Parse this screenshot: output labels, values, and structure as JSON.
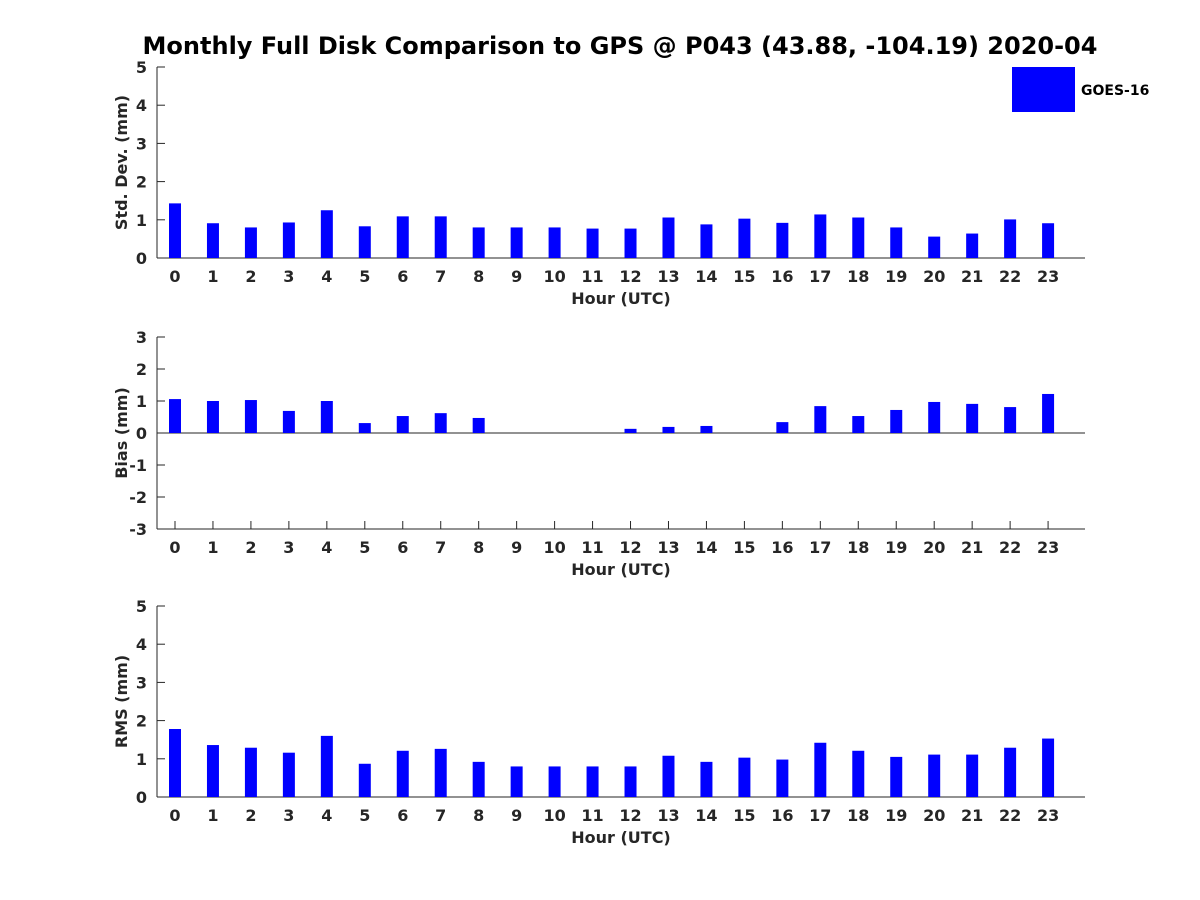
{
  "title": "Monthly Full Disk Comparison to GPS @ P043 (43.88, -104.19) 2020-04",
  "legend": {
    "label": "GOES-16",
    "placement": "top-right"
  },
  "colors": {
    "bar": "#0000ff",
    "axis": "#262626"
  },
  "chart_data": [
    {
      "type": "bar",
      "xlabel": "Hour (UTC)",
      "ylabel": "Std. Dev. (mm)",
      "ylim": [
        0,
        5
      ],
      "yticks": [
        0,
        1,
        2,
        3,
        4,
        5
      ],
      "categories": [
        "0",
        "1",
        "2",
        "3",
        "4",
        "5",
        "6",
        "7",
        "8",
        "9",
        "10",
        "11",
        "12",
        "13",
        "14",
        "15",
        "16",
        "17",
        "18",
        "19",
        "20",
        "21",
        "22",
        "23"
      ],
      "series": [
        {
          "name": "GOES-16",
          "values": [
            1.43,
            0.91,
            0.8,
            0.93,
            1.25,
            0.83,
            1.09,
            1.09,
            0.8,
            0.8,
            0.8,
            0.77,
            0.77,
            1.06,
            0.88,
            1.03,
            0.92,
            1.14,
            1.06,
            0.8,
            0.56,
            0.64,
            1.01,
            0.91
          ]
        }
      ]
    },
    {
      "type": "bar",
      "xlabel": "Hour (UTC)",
      "ylabel": "Bias (mm)",
      "ylim": [
        -3,
        3
      ],
      "yticks": [
        -3,
        -2,
        -1,
        0,
        1,
        2,
        3
      ],
      "categories": [
        "0",
        "1",
        "2",
        "3",
        "4",
        "5",
        "6",
        "7",
        "8",
        "9",
        "10",
        "11",
        "12",
        "13",
        "14",
        "15",
        "16",
        "17",
        "18",
        "19",
        "20",
        "21",
        "22",
        "23"
      ],
      "series": [
        {
          "name": "GOES-16",
          "values": [
            1.06,
            1.0,
            1.03,
            0.69,
            1.0,
            0.31,
            0.53,
            0.62,
            0.47,
            0.0,
            0.0,
            0.0,
            0.13,
            0.19,
            0.22,
            0.0,
            0.34,
            0.84,
            0.53,
            0.72,
            0.97,
            0.91,
            0.81,
            1.22
          ]
        }
      ]
    },
    {
      "type": "bar",
      "xlabel": "Hour (UTC)",
      "ylabel": "RMS (mm)",
      "ylim": [
        0,
        5
      ],
      "yticks": [
        0,
        1,
        2,
        3,
        4,
        5
      ],
      "categories": [
        "0",
        "1",
        "2",
        "3",
        "4",
        "5",
        "6",
        "7",
        "8",
        "9",
        "10",
        "11",
        "12",
        "13",
        "14",
        "15",
        "16",
        "17",
        "18",
        "19",
        "20",
        "21",
        "22",
        "23"
      ],
      "series": [
        {
          "name": "GOES-16",
          "values": [
            1.78,
            1.36,
            1.29,
            1.16,
            1.6,
            0.87,
            1.21,
            1.26,
            0.92,
            0.8,
            0.8,
            0.8,
            0.8,
            1.08,
            0.92,
            1.03,
            0.98,
            1.42,
            1.21,
            1.05,
            1.11,
            1.11,
            1.29,
            1.53
          ]
        }
      ]
    }
  ]
}
